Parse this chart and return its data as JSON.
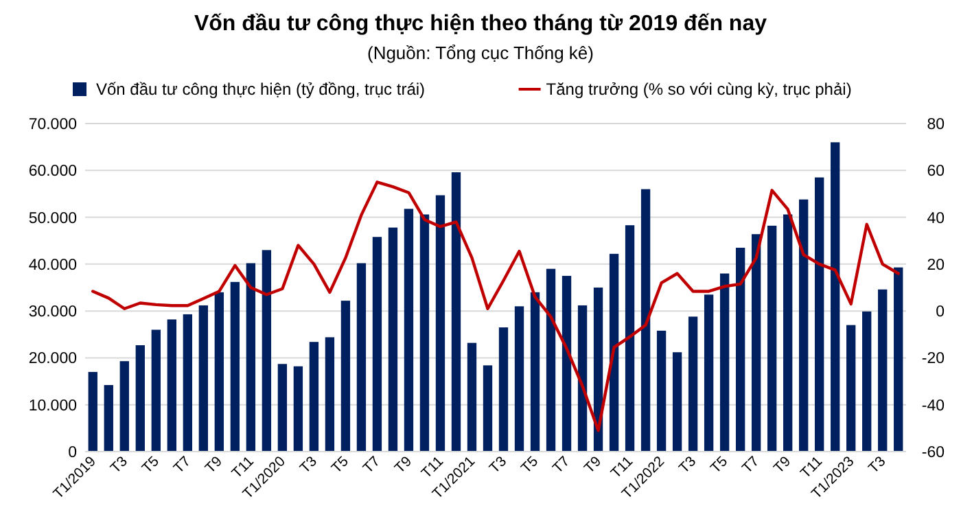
{
  "chart_data": {
    "type": "bar",
    "title": "Vốn đầu tư công thực hiện theo tháng từ 2019 đến nay",
    "subtitle": "(Nguồn: Tổng cục Thống kê)",
    "categories": [
      "T1/2019",
      null,
      "T3",
      null,
      "T5",
      null,
      "T7",
      null,
      "T9",
      null,
      "T11",
      null,
      "T1/2020",
      null,
      "T3",
      null,
      "T5",
      null,
      "T7",
      null,
      "T9",
      null,
      "T11",
      null,
      "T1/2021",
      null,
      "T3",
      null,
      "T5",
      null,
      "T7",
      null,
      "T9",
      null,
      "T11",
      null,
      "T1/2022",
      null,
      "T3",
      null,
      "T5",
      null,
      "T7",
      null,
      "T9",
      null,
      "T11",
      null,
      "T1/2023",
      null,
      "T3",
      null
    ],
    "series": [
      {
        "name": "Vốn đầu tư công thực hiện (tỷ đồng, trục trái)",
        "color": "#002060",
        "values": [
          17000,
          14200,
          19300,
          22700,
          26000,
          28200,
          29300,
          31200,
          34000,
          36200,
          40200,
          43000,
          18700,
          18200,
          23400,
          24400,
          32200,
          40200,
          45800,
          47800,
          51800,
          50600,
          54700,
          59600,
          23200,
          18400,
          26500,
          31000,
          34000,
          39000,
          37500,
          31200,
          35000,
          42200,
          48300,
          56000,
          25800,
          21200,
          28800,
          33500,
          38000,
          43500,
          46400,
          48200,
          50600,
          53800,
          58500,
          66000,
          27000,
          29900,
          34600,
          39300
        ]
      },
      {
        "name": "Tăng trưởng (% so với cùng kỳ, trục phải)",
        "type": "line",
        "axis": "y2",
        "color": "#c00000",
        "values": [
          8.4,
          5.5,
          1,
          3.4,
          2.7,
          2.3,
          2.3,
          5.3,
          8.4,
          19.4,
          10,
          7,
          9.5,
          28,
          20,
          8,
          22.7,
          41,
          55,
          53,
          50.5,
          39,
          36,
          38,
          22.7,
          1,
          13,
          25.5,
          6,
          -2.5,
          -16,
          -32,
          -51,
          -15.5,
          -11,
          -6,
          12,
          16,
          8.4,
          8.4,
          10.5,
          11.5,
          22.7,
          51.5,
          43.4,
          24,
          20,
          17.5,
          3,
          37,
          20,
          16
        ]
      }
    ],
    "ylim": [
      0,
      70000
    ],
    "yticks": [
      0,
      {
        "value": 10000,
        "label": "10.000"
      },
      {
        "value": 20000,
        "label": "20.000"
      },
      {
        "value": 30000,
        "label": "30.000"
      },
      {
        "value": 40000,
        "label": "40.000"
      },
      {
        "value": 50000,
        "label": "50.000"
      },
      {
        "value": 60000,
        "label": "60.000"
      },
      {
        "value": 70000,
        "label": "70.000"
      }
    ],
    "y2lim": [
      -60,
      80
    ],
    "y2ticks": [
      -60,
      -40,
      -20,
      0,
      20,
      40,
      60,
      80
    ],
    "grid": "y",
    "legend": "top"
  }
}
